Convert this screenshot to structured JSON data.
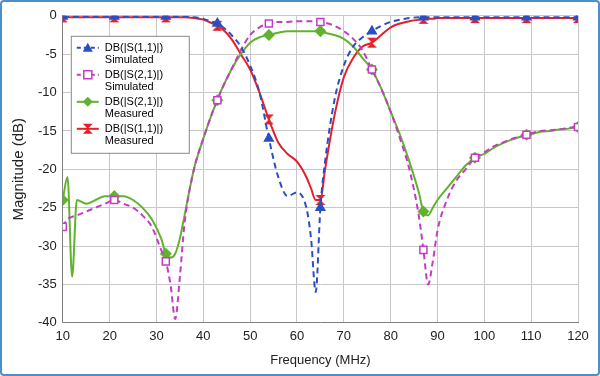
{
  "chart_data": {
    "type": "line",
    "x_label": "Frequency (MHz)",
    "y_label": "Magnitude (dB)",
    "x": [
      10,
      11,
      12,
      13,
      15,
      17,
      19,
      21,
      23,
      25,
      27,
      29,
      31,
      32,
      33,
      34,
      35,
      36,
      38,
      40,
      42,
      43,
      44,
      46,
      48,
      50,
      52,
      54,
      56,
      58,
      60,
      62,
      63,
      64,
      65,
      66,
      68,
      70,
      72,
      74,
      76,
      78,
      80,
      82,
      84,
      86,
      87,
      88,
      89,
      90,
      92,
      94,
      96,
      98,
      100,
      102,
      104,
      106,
      108,
      109,
      110,
      112,
      114,
      116,
      118,
      120
    ],
    "xlim": [
      10,
      120
    ],
    "xticks": [
      10,
      20,
      30,
      40,
      50,
      60,
      70,
      80,
      90,
      100,
      110,
      120
    ],
    "ylim": [
      -40,
      0
    ],
    "yticks": [
      -40,
      -35,
      -30,
      -25,
      -20,
      -15,
      -10,
      -5,
      0
    ],
    "grid": true,
    "legend": "upper left",
    "series": [
      {
        "name": "DB(|S(1,1)|) Simulated",
        "color": "#2a4fc4",
        "marker": "triangle",
        "line_style": "dashed",
        "values": [
          -0.1,
          -0.1,
          -0.1,
          -0.1,
          -0.1,
          -0.1,
          -0.1,
          -0.1,
          -0.1,
          -0.1,
          -0.1,
          -0.1,
          -0.1,
          -0.1,
          -0.1,
          -0.1,
          -0.1,
          -0.1,
          -0.2,
          -0.4,
          -0.8,
          -1,
          -1.4,
          -2.5,
          -4,
          -6.5,
          -10,
          -16,
          -21,
          -23.5,
          -23,
          -25,
          -29,
          -36,
          -25,
          -19,
          -11,
          -6.5,
          -4,
          -2.8,
          -2,
          -1.3,
          -0.8,
          -0.5,
          -0.3,
          -0.2,
          -0.2,
          -0.2,
          -0.2,
          -0.2,
          -0.2,
          -0.2,
          -0.2,
          -0.2,
          -0.2,
          -0.2,
          -0.2,
          -0.2,
          -0.2,
          -0.2,
          -0.2,
          -0.2,
          -0.2,
          -0.2,
          -0.2,
          -0.2
        ]
      },
      {
        "name": "DB(|S(2,1)|) Simulated",
        "color": "#c43cc4",
        "marker": "open_square",
        "line_style": "dashed",
        "values": [
          -27.5,
          -26.5,
          -26.2,
          -26,
          -25.5,
          -25,
          -24.5,
          -24,
          -24.5,
          -25,
          -26,
          -27.5,
          -30.5,
          -32,
          -35,
          -39.5,
          -34,
          -27,
          -20,
          -16,
          -12.5,
          -11,
          -9.5,
          -7,
          -4.5,
          -2.5,
          -1.5,
          -1,
          -0.8,
          -0.8,
          -0.7,
          -0.7,
          -0.7,
          -0.7,
          -0.8,
          -0.9,
          -1.3,
          -2,
          -3,
          -4.5,
          -7,
          -9.5,
          -12.5,
          -16,
          -20,
          -26,
          -30.5,
          -35,
          -32,
          -28,
          -24,
          -21.5,
          -20,
          -18.5,
          -17.8,
          -17,
          -16.5,
          -16,
          -15.7,
          -15.5,
          -15.3,
          -15,
          -14.9,
          -14.8,
          -14.6,
          -14.5
        ]
      },
      {
        "name": "DB(|S(2,1)|) Measured",
        "color": "#62b22e",
        "marker": "diamond",
        "line_style": "solid",
        "values": [
          -24,
          -21,
          -34,
          -24,
          -24.5,
          -24,
          -23.5,
          -23.5,
          -23.5,
          -24,
          -25,
          -26.5,
          -29,
          -31,
          -31.5,
          -31,
          -29,
          -26,
          -20,
          -16,
          -12.5,
          -11,
          -9.5,
          -7,
          -5,
          -3.5,
          -2.8,
          -2.5,
          -2.2,
          -2,
          -2,
          -2,
          -2,
          -2,
          -2,
          -2.2,
          -2.5,
          -3,
          -4,
          -5.5,
          -7,
          -9.5,
          -12.5,
          -15.5,
          -19,
          -23,
          -25.5,
          -26,
          -25,
          -24,
          -22.5,
          -21,
          -19.5,
          -18.5,
          -18,
          -17.2,
          -16.6,
          -16.1,
          -15.7,
          -15.5,
          -15.4,
          -15.1,
          -15,
          -14.8,
          -14.7,
          -14.5
        ]
      },
      {
        "name": "DB(|S(1,1)|) Measured",
        "color": "#e3202a",
        "marker": "bowtie",
        "line_style": "solid",
        "values": [
          -0.2,
          -0.2,
          -0.2,
          -0.2,
          -0.2,
          -0.2,
          -0.2,
          -0.2,
          -0.2,
          -0.2,
          -0.2,
          -0.2,
          -0.2,
          -0.2,
          -0.2,
          -0.2,
          -0.2,
          -0.2,
          -0.3,
          -0.5,
          -1,
          -1.3,
          -1.7,
          -3,
          -5,
          -7,
          -10,
          -13.5,
          -16.5,
          -18,
          -19,
          -21,
          -22.5,
          -24,
          -24,
          -20,
          -13,
          -8,
          -5.5,
          -4,
          -3.5,
          -2.5,
          -1.5,
          -1,
          -0.7,
          -0.5,
          -0.4,
          -0.4,
          -0.4,
          -0.3,
          -0.3,
          -0.3,
          -0.3,
          -0.3,
          -0.3,
          -0.3,
          -0.3,
          -0.3,
          -0.3,
          -0.3,
          -0.3,
          -0.3,
          -0.3,
          -0.3,
          -0.3,
          -0.3
        ]
      }
    ]
  }
}
